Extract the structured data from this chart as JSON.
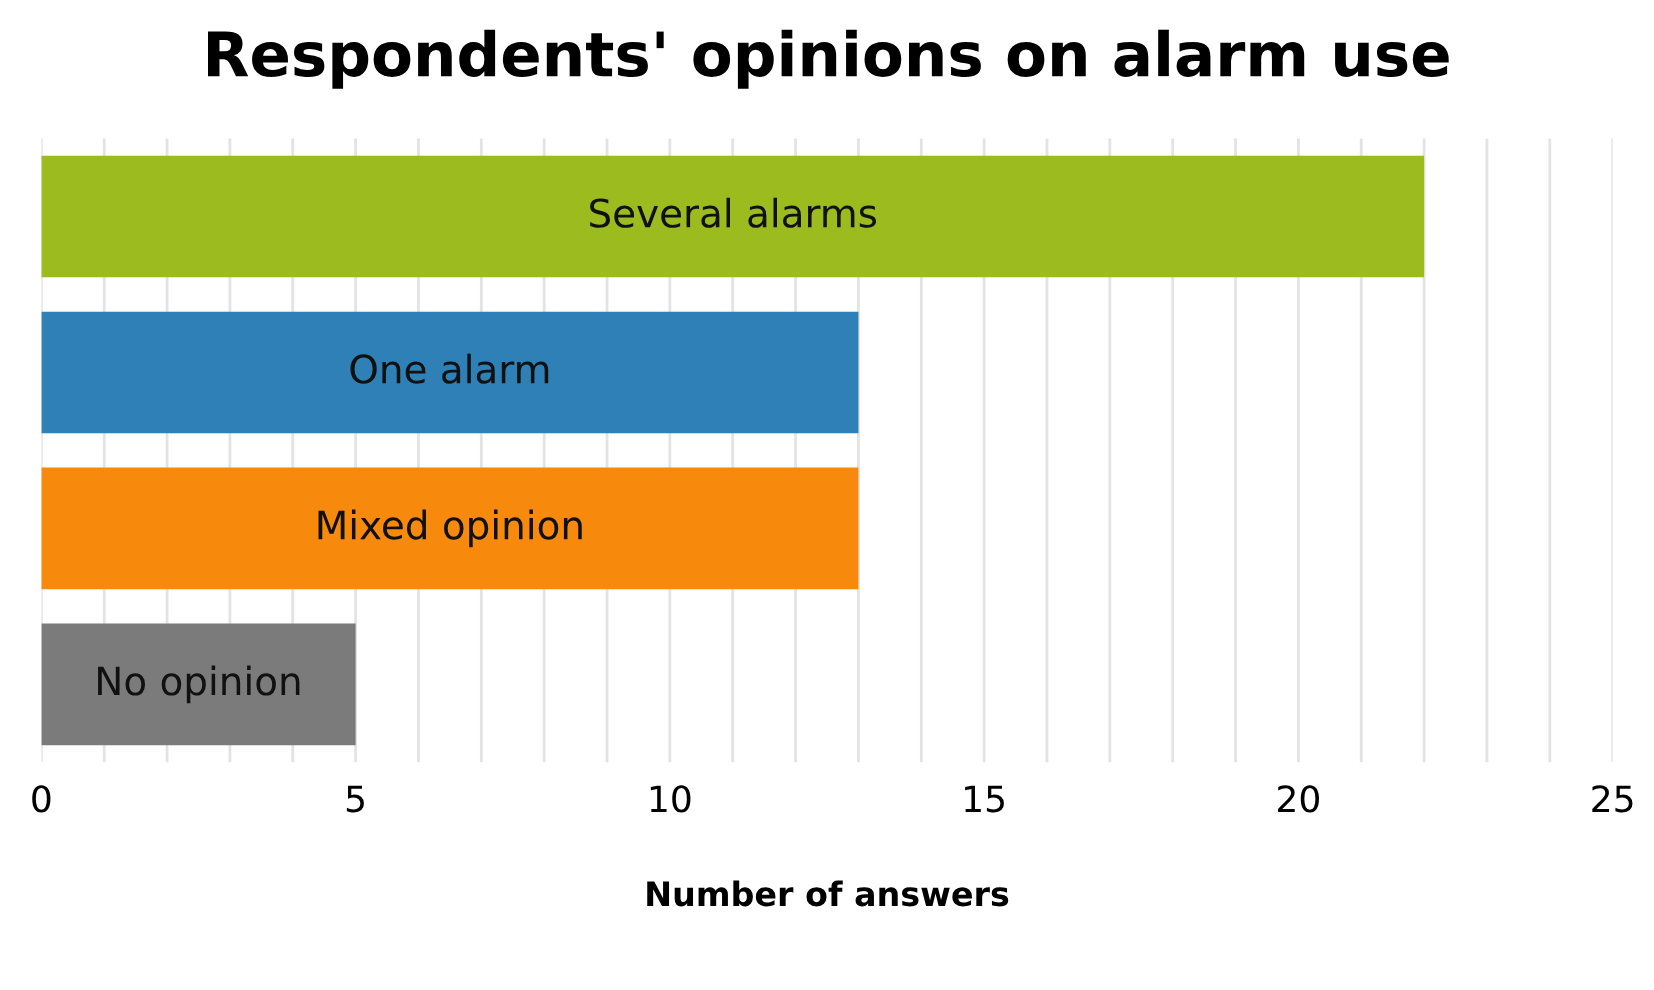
{
  "chart_data": {
    "type": "bar",
    "orientation": "horizontal",
    "title": "Respondents' opinions on alarm use",
    "xlabel": "Number of answers",
    "categories": [
      "Several alarms",
      "One alarm",
      "Mixed opinion",
      "No opinion"
    ],
    "values": [
      22,
      13,
      13,
      5
    ],
    "colors": [
      "#9cbb1e",
      "#2f80b6",
      "#f78a0c",
      "#7b7b7b"
    ],
    "xlim": [
      0,
      25
    ],
    "xticks": [
      0,
      {
        "value": 1,
        "label": null
      },
      {
        "value": 2,
        "label": null
      },
      {
        "value": 3,
        "label": null
      },
      {
        "value": 4,
        "label": null
      },
      5,
      {
        "value": 6,
        "label": null
      },
      {
        "value": 7,
        "label": null
      },
      {
        "value": 8,
        "label": null
      },
      {
        "value": 9,
        "label": null
      },
      10,
      {
        "value": 11,
        "label": null
      },
      {
        "value": 12,
        "label": null
      },
      {
        "value": 13,
        "label": null
      },
      {
        "value": 14,
        "label": null
      },
      15,
      {
        "value": 16,
        "label": null
      },
      {
        "value": 17,
        "label": null
      },
      {
        "value": 18,
        "label": null
      },
      {
        "value": 19,
        "label": null
      },
      20,
      {
        "value": 21,
        "label": null
      },
      {
        "value": 22,
        "label": null
      },
      {
        "value": 23,
        "label": null
      },
      {
        "value": 24,
        "label": null
      },
      25
    ],
    "grid": "x"
  }
}
